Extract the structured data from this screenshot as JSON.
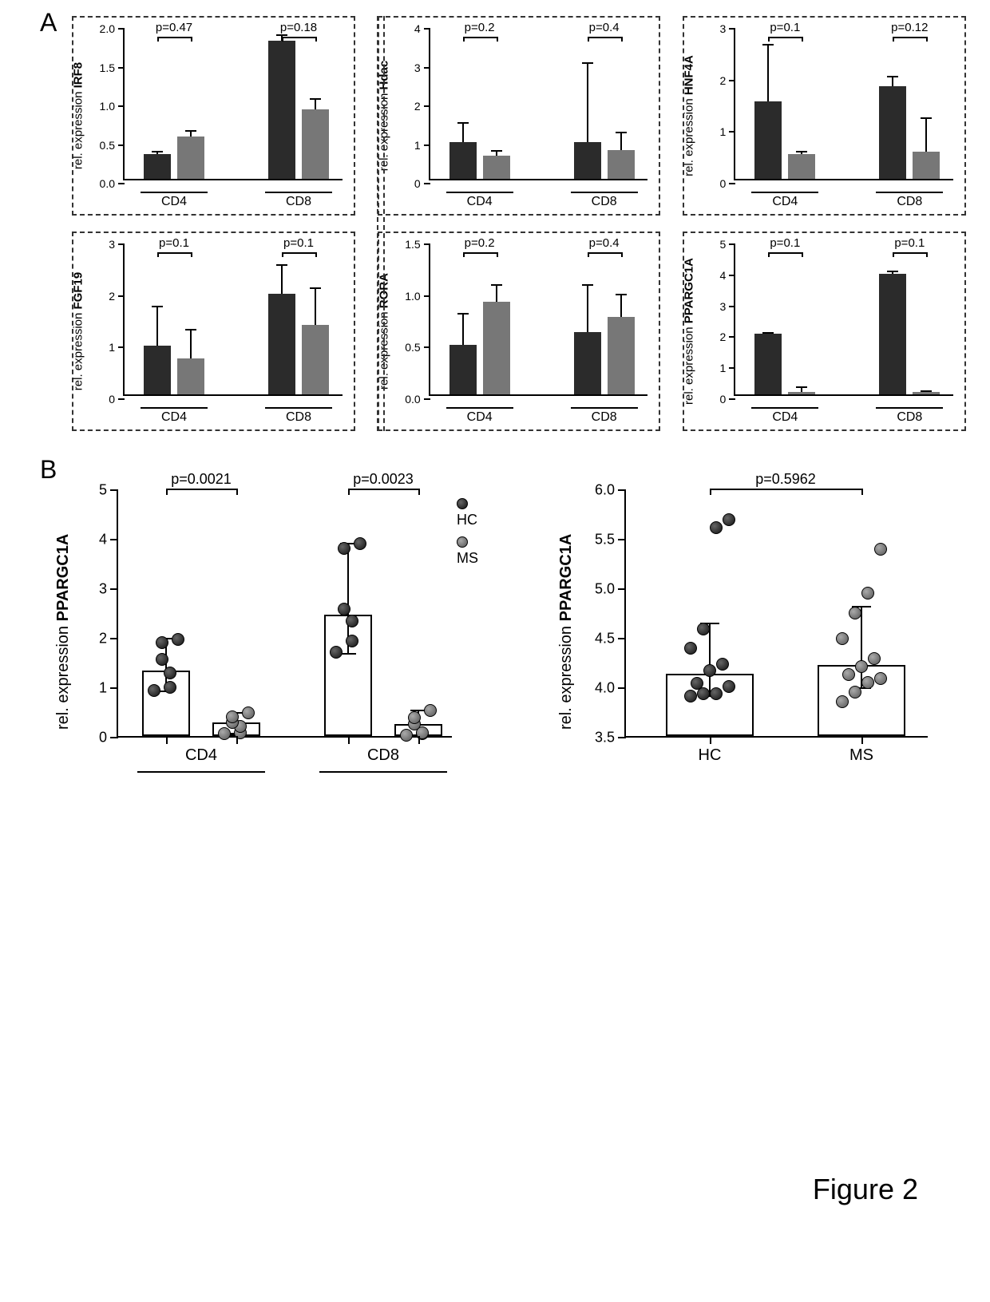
{
  "figure_label": "Figure 2",
  "panels": {
    "A": "A",
    "B": "B"
  },
  "colors": {
    "bar_dark": "#2b2b2b",
    "bar_grey": "#777777",
    "dot_hc": "#333333",
    "dot_ms": "#777777",
    "background": "#ffffff",
    "axis": "#000000",
    "border_dash": "#333333"
  },
  "panel_a": {
    "x_groups": [
      "CD4",
      "CD8"
    ],
    "series_labels": [
      "HC",
      "MS"
    ],
    "y_axis_label_prefix": "rel. expression",
    "charts": [
      {
        "gene": "IRF8",
        "ymax": 2.0,
        "ytick_step": 0.5,
        "decimals": 1,
        "p_cd4": "p=0.47",
        "p_cd8": "p=0.18",
        "cd4": {
          "hc": {
            "v": 0.32,
            "err": 0.03
          },
          "ms": {
            "v": 0.55,
            "err": 0.07
          }
        },
        "cd8": {
          "hc": {
            "v": 1.78,
            "err": 0.08
          },
          "ms": {
            "v": 0.9,
            "err": 0.13
          }
        }
      },
      {
        "gene": "Hdac",
        "ymax": 4.0,
        "ytick_step": 1.0,
        "decimals": 0,
        "p_cd4": "p=0.2",
        "p_cd8": "p=0.4",
        "cd4": {
          "hc": {
            "v": 0.95,
            "err": 0.5
          },
          "ms": {
            "v": 0.6,
            "err": 0.12
          }
        },
        "cd8": {
          "hc": {
            "v": 0.95,
            "err": 2.05
          },
          "ms": {
            "v": 0.75,
            "err": 0.45
          }
        }
      },
      {
        "gene": "HNF4A",
        "ymax": 3.0,
        "ytick_step": 1.0,
        "decimals": 0,
        "p_cd4": "p=0.1",
        "p_cd8": "p=0.12",
        "cd4": {
          "hc": {
            "v": 1.5,
            "err": 1.1
          },
          "ms": {
            "v": 0.48,
            "err": 0.04
          }
        },
        "cd8": {
          "hc": {
            "v": 1.8,
            "err": 0.18
          },
          "ms": {
            "v": 0.52,
            "err": 0.65
          }
        }
      },
      {
        "gene": "FGF19",
        "ymax": 3.0,
        "ytick_step": 1.0,
        "decimals": 0,
        "p_cd4": "p=0.1",
        "p_cd8": "p=0.1",
        "cd4": {
          "hc": {
            "v": 0.95,
            "err": 0.75
          },
          "ms": {
            "v": 0.7,
            "err": 0.55
          }
        },
        "cd8": {
          "hc": {
            "v": 1.95,
            "err": 0.55
          },
          "ms": {
            "v": 1.35,
            "err": 0.7
          }
        }
      },
      {
        "gene": "RORA",
        "ymax": 1.5,
        "ytick_step": 0.5,
        "decimals": 1,
        "p_cd4": "p=0.2",
        "p_cd8": "p=0.4",
        "cd4": {
          "hc": {
            "v": 0.48,
            "err": 0.3
          },
          "ms": {
            "v": 0.9,
            "err": 0.16
          }
        },
        "cd8": {
          "hc": {
            "v": 0.6,
            "err": 0.46
          },
          "ms": {
            "v": 0.75,
            "err": 0.22
          }
        }
      },
      {
        "gene": "PPARGC1A",
        "ymax": 5.0,
        "ytick_step": 1.0,
        "decimals": 0,
        "p_cd4": "p=0.1",
        "p_cd8": "p=0.1",
        "cd4": {
          "hc": {
            "v": 1.95,
            "err": 0.04
          },
          "ms": {
            "v": 0.08,
            "err": 0.15
          }
        },
        "cd8": {
          "hc": {
            "v": 3.9,
            "err": 0.08
          },
          "ms": {
            "v": 0.08,
            "err": 0.03
          }
        }
      }
    ]
  },
  "panel_b_left": {
    "gene": "PPARGC1A",
    "y_axis_label": "rel. expression PPARGC1A",
    "ymin": 0,
    "ymax": 5,
    "ytick_step": 1,
    "decimals": 0,
    "x_groups": [
      "CD4",
      "CD8"
    ],
    "p_cd4": "p=0.0021",
    "p_cd8": "p=0.0023",
    "legend": {
      "hc": "HC",
      "ms": "MS"
    },
    "groups": {
      "cd4": {
        "hc": {
          "mean": 1.32,
          "err_lo": 0.94,
          "err_hi": 2.0,
          "points": [
            0.95,
            1.02,
            1.3,
            1.58,
            1.92,
            1.98
          ]
        },
        "ms": {
          "mean": 0.28,
          "err_lo": 0.08,
          "err_hi": 0.5,
          "points": [
            0.08,
            0.1,
            0.22,
            0.3,
            0.42,
            0.5
          ]
        }
      },
      "cd8": {
        "hc": {
          "mean": 2.45,
          "err_lo": 1.7,
          "err_hi": 3.92,
          "points": [
            1.72,
            1.95,
            2.35,
            2.6,
            3.82,
            3.92
          ]
        },
        "ms": {
          "mean": 0.25,
          "err_lo": 0.05,
          "err_hi": 0.55,
          "points": [
            0.05,
            0.08,
            0.1,
            0.28,
            0.4,
            0.55
          ]
        }
      }
    }
  },
  "panel_b_right": {
    "gene": "PPARGC1A",
    "y_axis_label": "rel. expression PPARGC1A",
    "ymin": 3.5,
    "ymax": 6.0,
    "ytick_step": 0.5,
    "decimals": 1,
    "x_groups": [
      "HC",
      "MS"
    ],
    "p": "p=0.5962",
    "groups": {
      "hc": {
        "mean": 4.13,
        "err_lo": 3.92,
        "err_hi": 4.65,
        "points": [
          3.92,
          3.94,
          3.94,
          4.02,
          4.05,
          4.18,
          4.24,
          4.4,
          4.6,
          5.62,
          5.7
        ]
      },
      "ms": {
        "mean": 4.22,
        "err_lo": 4.0,
        "err_hi": 4.82,
        "points": [
          3.86,
          3.96,
          4.06,
          4.1,
          4.14,
          4.22,
          4.3,
          4.5,
          4.76,
          4.96,
          5.4
        ]
      }
    }
  }
}
